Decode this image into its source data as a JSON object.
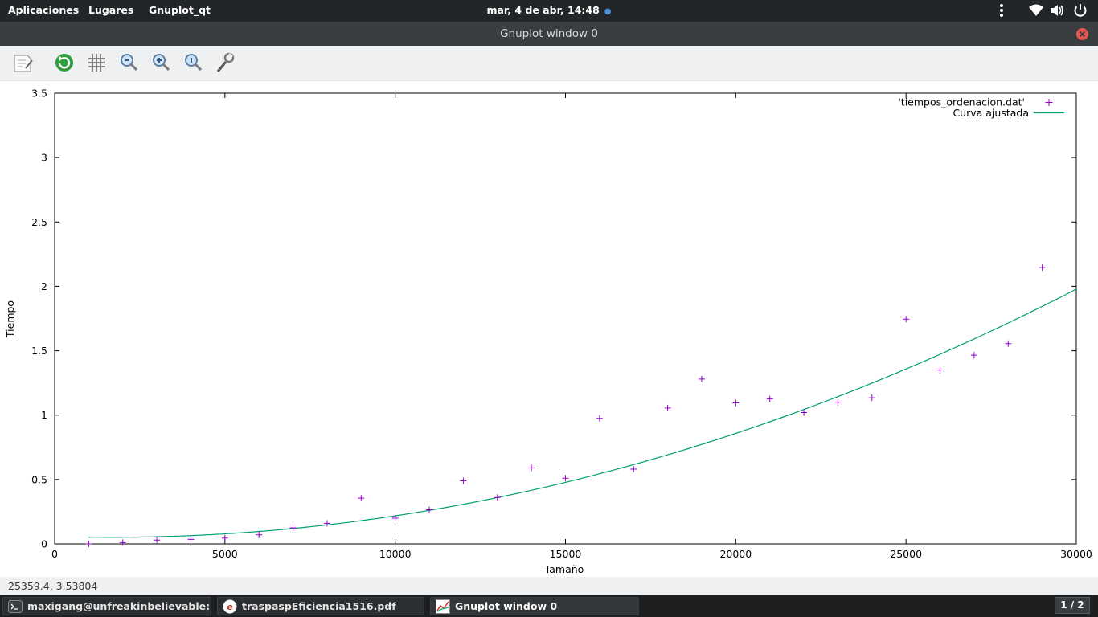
{
  "top_panel": {
    "menu_apps": "Aplicaciones",
    "menu_places": "Lugares",
    "menu_app": "Gnuplot_qt",
    "clock": "mar,  4 de abr, 14:48",
    "clock_dot": "●"
  },
  "window": {
    "title": "Gnuplot window 0"
  },
  "toolbar": {
    "icons": [
      "export-icon",
      "replot-icon",
      "grid-icon",
      "zoom-out-icon",
      "zoom-in-icon",
      "zoom-fit-icon",
      "settings-wrench-icon"
    ]
  },
  "status": {
    "coords": "25359.4,  3.53804"
  },
  "taskbar": {
    "terminal": "maxigang@unfreakinbelievable:~/...",
    "pdf": "traspaspEficiencia1516.pdf",
    "gnuplot": "Gnuplot window 0",
    "workspace": "1 / 2"
  },
  "colors": {
    "points": "#9400d3",
    "curve": "#009e73"
  },
  "chart_data": {
    "type": "scatter",
    "xlabel": "Tamaño",
    "ylabel": "Tiempo",
    "xlim": [
      0,
      30000
    ],
    "ylim": [
      0,
      3.5
    ],
    "x_ticks": [
      0,
      5000,
      10000,
      15000,
      20000,
      25000,
      30000
    ],
    "y_ticks": [
      0,
      0.5,
      1,
      1.5,
      2,
      2.5,
      3,
      3.5
    ],
    "x_tick_labels": [
      "0",
      "5000",
      "10000",
      "15000",
      "20000",
      "25000",
      "30000"
    ],
    "y_tick_labels": [
      "0",
      "0.5",
      "1",
      "1.5",
      "2",
      "2.5",
      "3",
      "3.5"
    ],
    "grid": false,
    "legend_position": "top-right",
    "series": [
      {
        "name": "'tiempos_ordenacion.dat'",
        "style": "points",
        "marker": "+",
        "x": [
          1000,
          2000,
          3000,
          4000,
          5000,
          6000,
          7000,
          8000,
          9000,
          10000,
          11000,
          12000,
          13000,
          14000,
          15000,
          16000,
          17000,
          18000,
          19000,
          20000,
          21000,
          22000,
          23000,
          24000,
          25000,
          26000,
          27000,
          28000,
          29000
        ],
        "y": [
          0.0,
          0.01,
          0.03,
          0.035,
          0.045,
          0.07,
          0.125,
          0.16,
          0.355,
          0.2,
          0.265,
          0.49,
          0.36,
          0.59,
          0.51,
          0.975,
          0.58,
          1.055,
          1.28,
          1.095,
          1.125,
          1.02,
          1.1,
          1.135,
          1.745,
          1.35,
          1.465,
          1.555,
          2.145
        ]
      },
      {
        "name": "Curva ajustada",
        "style": "line",
        "model": "quadratic",
        "coefficients": {
          "a": 2.4e-09,
          "b": -8e-06,
          "c": 0.058
        },
        "x_range": [
          1000,
          30000
        ]
      }
    ]
  }
}
